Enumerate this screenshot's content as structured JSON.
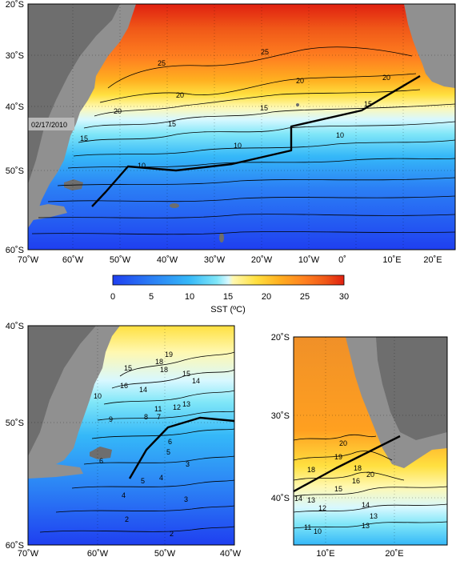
{
  "main_map": {
    "date_label": "02/17/2010",
    "lat_labels": [
      "20˚S",
      "30˚S",
      "40˚S",
      "50˚S",
      "60˚S"
    ],
    "lon_labels": [
      "70˚W",
      "60˚W",
      "50˚W",
      "40˚W",
      "30˚W",
      "20˚W",
      "10˚W",
      "0˚",
      "10˚E",
      "20˚E"
    ],
    "contour_labels": [
      "25",
      "25",
      "20",
      "20",
      "20",
      "20",
      "15",
      "15",
      "15",
      "15",
      "10",
      "10",
      "10"
    ]
  },
  "colorbar": {
    "ticks": [
      "0",
      "5",
      "10",
      "15",
      "20",
      "25",
      "30"
    ],
    "title": "SST (ºC)",
    "colors": [
      "#1f3ff0",
      "#2b7ff5",
      "#35b8f8",
      "#7fe6f8",
      "#d8f8ff",
      "#fff8b0",
      "#ffe040",
      "#ffb020",
      "#ff8020",
      "#f05818",
      "#e02010"
    ]
  },
  "left_map": {
    "lat_labels": [
      "40˚S",
      "50˚S",
      "60˚S"
    ],
    "lon_labels": [
      "70˚W",
      "60˚W",
      "50˚W",
      "40˚W"
    ],
    "contour_labels": [
      "19",
      "18",
      "18",
      "16",
      "15",
      "15",
      "14",
      "14",
      "13",
      "12",
      "11",
      "10",
      "9",
      "8",
      "7",
      "6",
      "6",
      "5",
      "5",
      "4",
      "4",
      "3",
      "3",
      "2",
      "2"
    ]
  },
  "right_map": {
    "lat_labels": [
      "20˚S",
      "30˚S",
      "40˚S"
    ],
    "lon_labels": [
      "10˚E",
      "20˚E"
    ],
    "contour_labels": [
      "20",
      "19",
      "18",
      "20",
      "18",
      "16",
      "15",
      "14",
      "13",
      "12",
      "11",
      "10",
      "14",
      "13",
      "13"
    ]
  }
}
